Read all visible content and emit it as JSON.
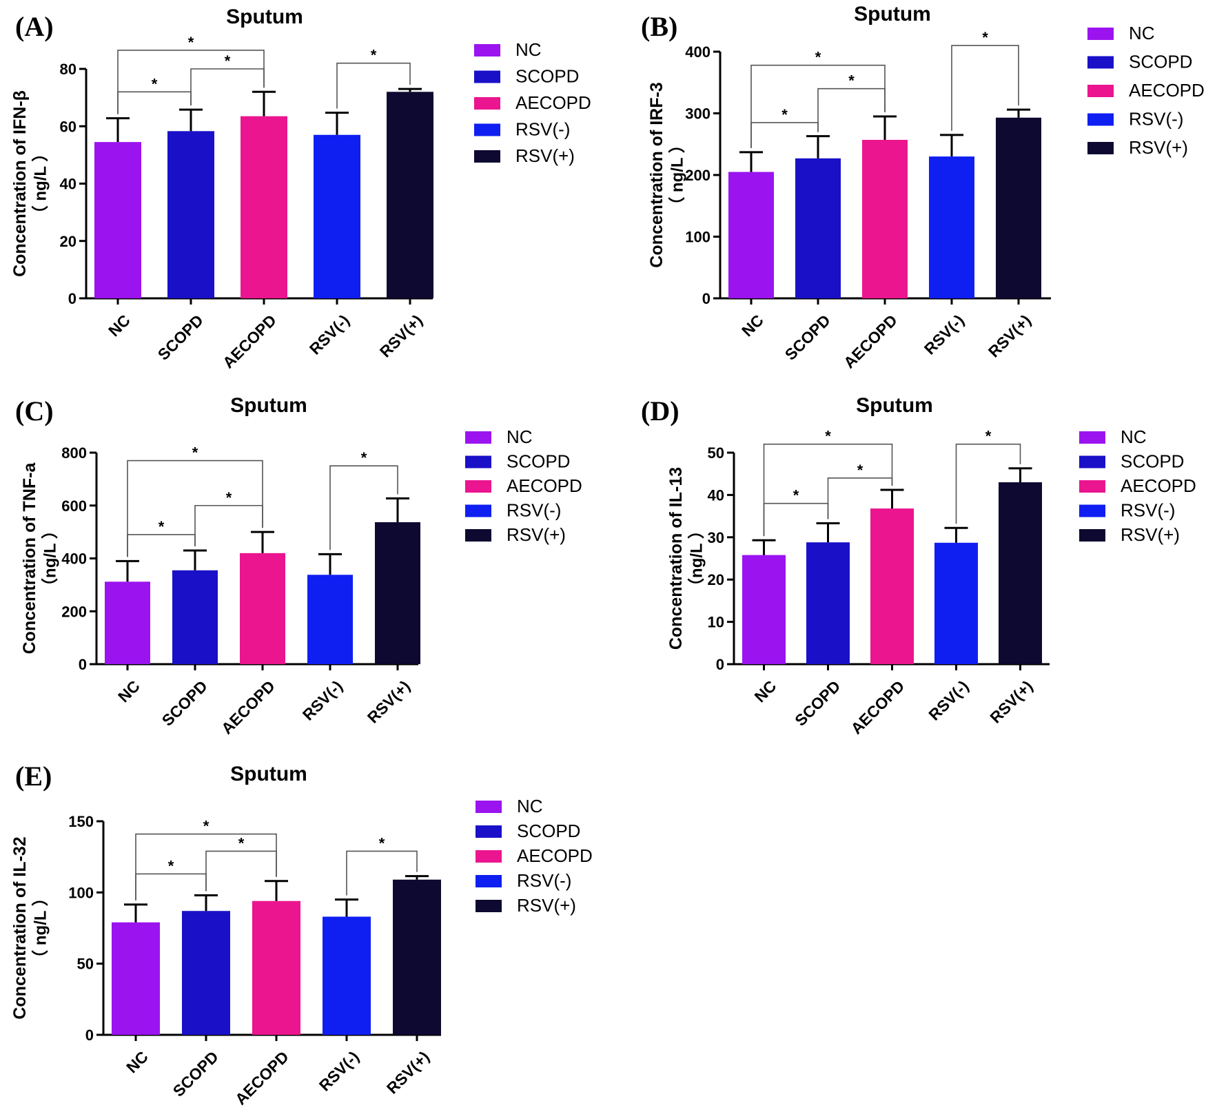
{
  "legend_colors": {
    "NC": "#9b14f0",
    "SCOPD": "#1a10c8",
    "AECOPD": "#ea158f",
    "RSV(-)": "#0f1ff2",
    "RSV(+)": "#0d0930"
  },
  "chart_data": [
    {
      "panel": "(A)",
      "type": "bar",
      "title": "Sputum",
      "ylabel": "Concentration of IFN-β",
      "yunit": "（ ng/L ）",
      "categories": [
        "NC",
        "SCOPD",
        "AECOPD",
        "RSV(-)",
        "RSV(+)"
      ],
      "values": [
        54.5,
        58.3,
        63.5,
        57.0,
        72.0
      ],
      "errors": [
        8.3,
        7.5,
        8.5,
        7.7,
        1.0
      ],
      "ylim": [
        0,
        80
      ],
      "yticks": [
        0,
        20,
        40,
        60,
        80
      ],
      "brackets": [
        {
          "from": 0,
          "to": 1,
          "y": 72.0,
          "label": "*"
        },
        {
          "from": 1,
          "to": 2,
          "y": 80.0,
          "label": "*"
        },
        {
          "from": 0,
          "to": 2,
          "y": 86.5,
          "label": "*"
        },
        {
          "from": 3,
          "to": 4,
          "y": 82.0,
          "label": "*"
        }
      ],
      "legend": [
        "NC",
        "SCOPD",
        "AECOPD",
        "RSV(-)",
        "RSV(+)"
      ]
    },
    {
      "panel": "(B)",
      "type": "bar",
      "title": "Sputum",
      "ylabel": "Concentration of IRF-3",
      "yunit": "（ ng/L ）",
      "categories": [
        "NC",
        "SCOPD",
        "AECOPD",
        "RSV(-)",
        "RSV(+)"
      ],
      "values": [
        205,
        227,
        257,
        230,
        293
      ],
      "errors": [
        32,
        36,
        38,
        35,
        13
      ],
      "ylim": [
        0,
        400
      ],
      "yticks": [
        0,
        100,
        200,
        300,
        400
      ],
      "brackets": [
        {
          "from": 0,
          "to": 1,
          "y": 285,
          "label": "*"
        },
        {
          "from": 1,
          "to": 2,
          "y": 340,
          "label": "*"
        },
        {
          "from": 0,
          "to": 2,
          "y": 378,
          "label": "*"
        },
        {
          "from": 3,
          "to": 4,
          "y": 410,
          "label": "*"
        }
      ],
      "legend": [
        "NC",
        "SCOPD",
        "AECOPD",
        "RSV(-)",
        "RSV(+)"
      ]
    },
    {
      "panel": "(C)",
      "type": "bar",
      "title": "Sputum",
      "ylabel": "Concentration of TNF-a",
      "yunit": "（ng/L ）",
      "categories": [
        "NC",
        "SCOPD",
        "AECOPD",
        "RSV(-)",
        "RSV(+)"
      ],
      "values": [
        312,
        355,
        420,
        338,
        537
      ],
      "errors": [
        78,
        75,
        80,
        78,
        90
      ],
      "ylim": [
        0,
        800
      ],
      "yticks": [
        0,
        200,
        400,
        600,
        800
      ],
      "brackets": [
        {
          "from": 0,
          "to": 1,
          "y": 490,
          "label": "*"
        },
        {
          "from": 1,
          "to": 2,
          "y": 600,
          "label": "*"
        },
        {
          "from": 0,
          "to": 2,
          "y": 770,
          "label": "*"
        },
        {
          "from": 3,
          "to": 4,
          "y": 750,
          "label": "*"
        }
      ],
      "legend": [
        "NC",
        "SCOPD",
        "AECOPD",
        "RSV(-)",
        "RSV(+)"
      ]
    },
    {
      "panel": "(D)",
      "type": "bar",
      "title": "Sputum",
      "ylabel": "Concentration of IL-13",
      "yunit": "（ng/L ）",
      "categories": [
        "NC",
        "SCOPD",
        "AECOPD",
        "RSV(-)",
        "RSV(+)"
      ],
      "values": [
        25.8,
        28.8,
        36.8,
        28.7,
        43.0
      ],
      "errors": [
        3.5,
        4.5,
        4.4,
        3.5,
        3.3
      ],
      "ylim": [
        0,
        50
      ],
      "yticks": [
        0,
        10,
        20,
        30,
        40,
        50
      ],
      "brackets": [
        {
          "from": 0,
          "to": 1,
          "y": 38.0,
          "label": "*"
        },
        {
          "from": 1,
          "to": 2,
          "y": 44.0,
          "label": "*"
        },
        {
          "from": 0,
          "to": 2,
          "y": 52.0,
          "label": "*"
        },
        {
          "from": 3,
          "to": 4,
          "y": 52.0,
          "label": "*"
        }
      ],
      "legend": [
        "NC",
        "SCOPD",
        "AECOPD",
        "RSV(-)",
        "RSV(+)"
      ]
    },
    {
      "panel": "(E)",
      "type": "bar",
      "title": "Sputum",
      "ylabel": "Concentration of IL-32",
      "yunit": "（ ng/L ）",
      "categories": [
        "NC",
        "SCOPD",
        "AECOPD",
        "RSV(-)",
        "RSV(+)"
      ],
      "values": [
        79,
        87,
        94,
        83,
        109
      ],
      "errors": [
        12.5,
        11,
        14,
        12,
        2.5
      ],
      "ylim": [
        0,
        150
      ],
      "yticks": [
        0,
        50,
        100,
        150
      ],
      "brackets": [
        {
          "from": 0,
          "to": 1,
          "y": 113,
          "label": "*"
        },
        {
          "from": 1,
          "to": 2,
          "y": 129,
          "label": "*"
        },
        {
          "from": 0,
          "to": 2,
          "y": 141,
          "label": "*"
        },
        {
          "from": 3,
          "to": 4,
          "y": 129,
          "label": "*"
        }
      ],
      "legend": [
        "NC",
        "SCOPD",
        "AECOPD",
        "RSV(-)",
        "RSV(+)"
      ]
    }
  ]
}
